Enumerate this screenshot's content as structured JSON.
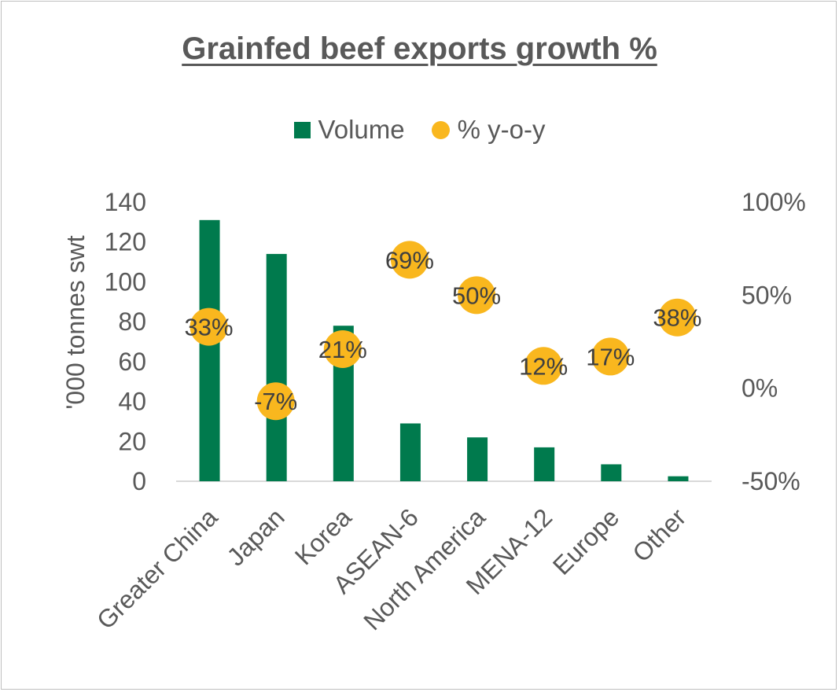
{
  "chart_data": {
    "type": "bar",
    "title": "Grainfed beef exports growth %",
    "categories": [
      "Greater China",
      "Japan",
      "Korea",
      "ASEAN-6",
      "North America",
      "MENA-12",
      "Europe",
      "Other"
    ],
    "series": [
      {
        "name": "Volume",
        "type": "bar",
        "axis": "left",
        "color": "#007A4D",
        "values": [
          131,
          114,
          78,
          29,
          22,
          17,
          8.5,
          2.5
        ]
      },
      {
        "name": "% y-o-y",
        "type": "scatter",
        "axis": "right",
        "color": "#F9B71E",
        "values": [
          33,
          -7,
          21,
          69,
          50,
          12,
          17,
          38
        ],
        "labels": [
          "33%",
          "-7%",
          "21%",
          "69%",
          "50%",
          "12%",
          "17%",
          "38%"
        ]
      }
    ],
    "ylabel": "'000 tonnes swt",
    "ylim": [
      0,
      140
    ],
    "yticks": [
      "0",
      "20",
      "40",
      "60",
      "80",
      "100",
      "120",
      "140"
    ],
    "y2lim": [
      -50,
      100
    ],
    "y2ticks": [
      "-50%",
      "0%",
      "50%",
      "100%"
    ],
    "legend_position": "top",
    "grid": false
  }
}
